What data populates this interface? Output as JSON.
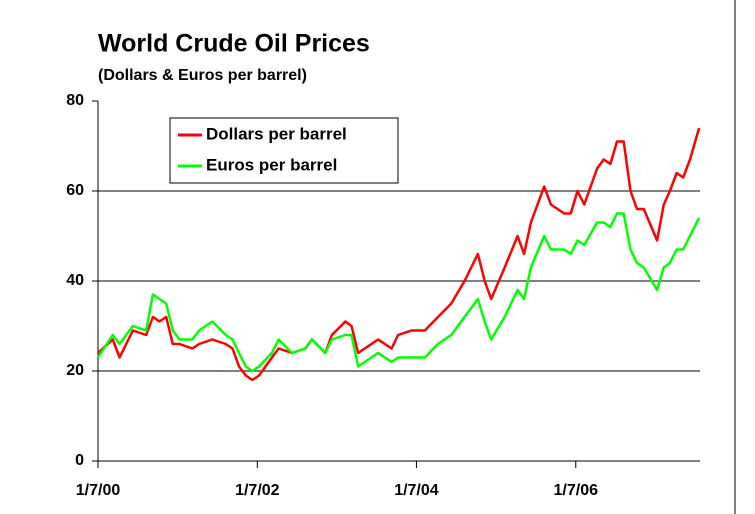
{
  "chart_data": {
    "type": "line",
    "title": "World Crude Oil Prices",
    "subtitle": "(Dollars & Euros per barrel)",
    "x": [
      "2000-01-07",
      "2000-03-15",
      "2000-04-15",
      "2000-06-15",
      "2000-08-15",
      "2000-09-15",
      "2000-10-15",
      "2000-11-15",
      "2000-12-15",
      "2001-01-15",
      "2001-03-15",
      "2001-04-15",
      "2001-06-15",
      "2001-08-15",
      "2001-09-15",
      "2001-10-15",
      "2001-11-15",
      "2001-12-15",
      "2002-01-15",
      "2002-03-15",
      "2002-04-15",
      "2002-06-15",
      "2002-08-15",
      "2002-09-15",
      "2002-11-15",
      "2002-12-15",
      "2003-02-15",
      "2003-03-15",
      "2003-04-15",
      "2003-05-15",
      "2003-07-15",
      "2003-09-15",
      "2003-10-15",
      "2003-12-15",
      "2004-02-15",
      "2004-04-15",
      "2004-06-15",
      "2004-08-15",
      "2004-10-15",
      "2004-11-15",
      "2004-12-15",
      "2005-02-15",
      "2005-04-15",
      "2005-05-15",
      "2005-06-15",
      "2005-08-15",
      "2005-09-15",
      "2005-11-15",
      "2005-12-15",
      "2006-01-15",
      "2006-02-15",
      "2006-04-15",
      "2006-05-15",
      "2006-06-15",
      "2006-07-15",
      "2006-08-15",
      "2006-09-15",
      "2006-10-15",
      "2006-11-15",
      "2007-01-15",
      "2007-02-15",
      "2007-03-15",
      "2007-04-15",
      "2007-05-15",
      "2007-06-15",
      "2007-07-27"
    ],
    "series": [
      {
        "name": "Dollars per barrel",
        "color": "#ff0000",
        "values": [
          24,
          27,
          23,
          29,
          28,
          32,
          31,
          32,
          26,
          26,
          25,
          26,
          27,
          26,
          25,
          21,
          19,
          18,
          19,
          23,
          25,
          24,
          25,
          27,
          24,
          28,
          31,
          30,
          24,
          25,
          27,
          25,
          28,
          29,
          29,
          32,
          35,
          40,
          46,
          40,
          36,
          43,
          50,
          46,
          53,
          61,
          57,
          55,
          55,
          60,
          57,
          65,
          67,
          66,
          71,
          71,
          60,
          56,
          56,
          49,
          57,
          60,
          64,
          63,
          67,
          74
        ]
      },
      {
        "name": "Euros per barrel",
        "color": "#00ff00",
        "values": [
          23,
          28,
          26,
          30,
          29,
          37,
          36,
          35,
          29,
          27,
          27,
          29,
          31,
          28,
          27,
          24,
          21,
          20,
          21,
          24,
          27,
          24,
          25,
          27,
          24,
          27,
          28,
          28,
          21,
          22,
          24,
          22,
          23,
          23,
          23,
          26,
          28,
          32,
          36,
          31,
          27,
          32,
          38,
          36,
          43,
          50,
          47,
          47,
          46,
          49,
          48,
          53,
          53,
          52,
          55,
          55,
          47,
          44,
          43,
          38,
          43,
          44,
          47,
          47,
          50,
          54
        ]
      }
    ],
    "xlim": [
      "2000-01-07",
      "2007-07-31"
    ],
    "xticks": [
      {
        "value": "2000-01-07",
        "label": "1/7/00"
      },
      {
        "value": "2002-01-07",
        "label": "1/7/02"
      },
      {
        "value": "2004-01-07",
        "label": "1/7/04"
      },
      {
        "value": "2006-01-07",
        "label": "1/7/06"
      }
    ],
    "ylim": [
      0,
      80
    ],
    "yticks": [
      0,
      20,
      40,
      60,
      80
    ],
    "grid": true,
    "legend": "upper left"
  }
}
